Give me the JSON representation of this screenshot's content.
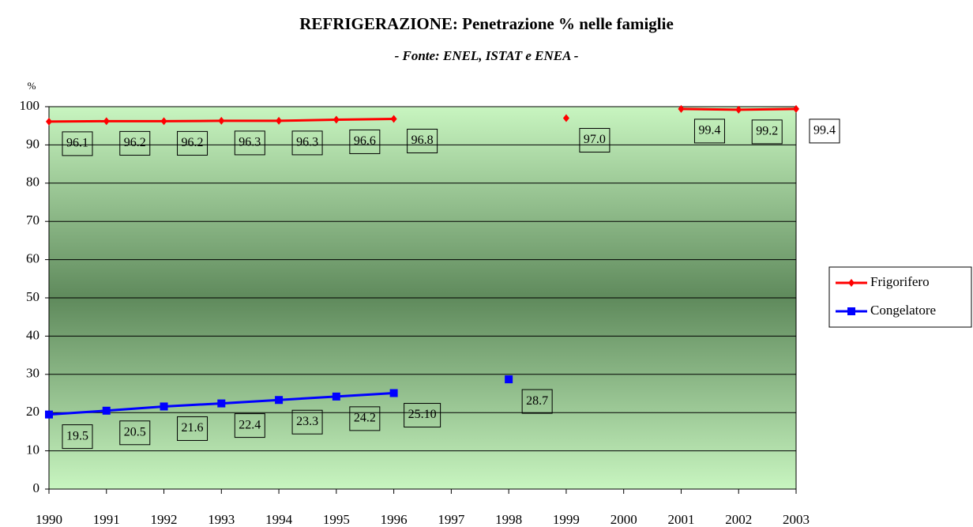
{
  "chart_data": {
    "type": "line",
    "title": "REFRIGERAZIONE: Penetrazione % nelle famiglie",
    "subtitle": "- Fonte: ENEL, ISTAT e ENEA -",
    "y_label": "%",
    "categories": [
      "1990",
      "1991",
      "1992",
      "1993",
      "1994",
      "1995",
      "1996",
      "1997",
      "1998",
      "1999",
      "2000",
      "2001",
      "2002",
      "2003"
    ],
    "series": [
      {
        "name": "Frigorifero",
        "color": "#ff0000",
        "values": [
          96.1,
          96.2,
          96.2,
          96.3,
          96.3,
          96.6,
          96.8,
          null,
          null,
          97.0,
          null,
          99.4,
          99.2,
          99.4
        ],
        "value_labels": [
          "96.1",
          "96.2",
          "96.2",
          "96.3",
          "96.3",
          "96.6",
          "96.8",
          null,
          null,
          "97.0",
          null,
          "99.4",
          "99.2",
          "99.4"
        ]
      },
      {
        "name": "Congelatore",
        "color": "#0000ff",
        "values": [
          19.5,
          20.5,
          21.6,
          22.4,
          23.3,
          24.2,
          25.1,
          null,
          28.7,
          null,
          null,
          null,
          null,
          null
        ],
        "value_labels": [
          "19.5",
          "20.5",
          "21.6",
          "22.4",
          "23.3",
          "24.2",
          "25.10",
          null,
          "28.7",
          null,
          null,
          null,
          null,
          null
        ]
      }
    ],
    "ylim": [
      0,
      100
    ],
    "yticks": [
      0,
      10,
      20,
      30,
      40,
      50,
      60,
      70,
      80,
      90,
      100
    ],
    "grid": true,
    "legend": "right"
  }
}
